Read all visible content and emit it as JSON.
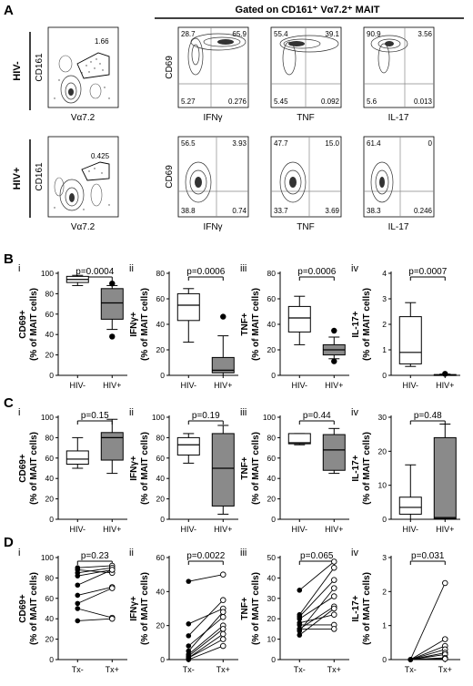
{
  "sections": {
    "A": {
      "label": "A",
      "gating_title": "Gated on CD161⁺ Vα7.2⁺ MAIT"
    },
    "B": {
      "label": "B"
    },
    "C": {
      "label": "C"
    },
    "D": {
      "label": "D"
    }
  },
  "panel_A": {
    "rows": [
      {
        "label": "HIV-",
        "gate": {
          "xlabel": "Vα7.2",
          "ylabel": "CD161",
          "value": "1.66"
        },
        "quadrants": [
          {
            "xlabel": "IFNγ",
            "ylabel": "CD69",
            "q": [
              "28.7",
              "65.9",
              "5.27",
              "0.276"
            ]
          },
          {
            "xlabel": "TNF",
            "ylabel": "",
            "q": [
              "55.4",
              "39.1",
              "5.45",
              "0.092"
            ]
          },
          {
            "xlabel": "IL-17",
            "ylabel": "",
            "q": [
              "90.9",
              "3.56",
              "5.6",
              "0.013"
            ]
          }
        ]
      },
      {
        "label": "HIV+",
        "gate": {
          "xlabel": "Vα7.2",
          "ylabel": "CD161",
          "value": "0.425"
        },
        "quadrants": [
          {
            "xlabel": "IFNγ",
            "ylabel": "CD69",
            "q": [
              "56.5",
              "3.93",
              "38.8",
              "0.74"
            ]
          },
          {
            "xlabel": "TNF",
            "ylabel": "",
            "q": [
              "47.7",
              "15.0",
              "33.7",
              "3.69"
            ]
          },
          {
            "xlabel": "IL-17",
            "ylabel": "",
            "q": [
              "61.4",
              "0",
              "38.3",
              "0.246"
            ]
          }
        ]
      }
    ]
  },
  "chart_data": [
    {
      "type": "boxplot",
      "section": "B",
      "roman": "i",
      "ylabel_main": "CD69+",
      "ylabel_sub": "(% of MAIT cells)",
      "ylim": [
        0,
        100
      ],
      "yticks": [
        0,
        20,
        40,
        60,
        80,
        100
      ],
      "categories": [
        "HIV-",
        "HIV+"
      ],
      "pvalue": "p=0.0004",
      "boxes": [
        {
          "min": 88,
          "q1": 91,
          "median": 94,
          "q3": 97,
          "max": 98,
          "outliers": []
        },
        {
          "min": 45,
          "q1": 55,
          "median": 71,
          "q3": 85,
          "max": 88,
          "outliers": [
            38,
            90
          ]
        }
      ]
    },
    {
      "type": "boxplot",
      "section": "B",
      "roman": "ii",
      "ylabel_main": "IFNγ+",
      "ylabel_sub": "(% of MAIT cells)",
      "ylim": [
        0,
        80
      ],
      "yticks": [
        0,
        20,
        40,
        60,
        80
      ],
      "categories": [
        "HIV-",
        "HIV+"
      ],
      "pvalue": "p=0.0006",
      "boxes": [
        {
          "min": 26,
          "q1": 43,
          "median": 55,
          "q3": 64,
          "max": 68,
          "outliers": []
        },
        {
          "min": 0,
          "q1": 2,
          "median": 4,
          "q3": 14,
          "max": 31,
          "outliers": [
            46
          ]
        }
      ]
    },
    {
      "type": "boxplot",
      "section": "B",
      "roman": "iii",
      "ylabel_main": "TNF+",
      "ylabel_sub": "(% of MAIT cells)",
      "ylim": [
        0,
        80
      ],
      "yticks": [
        0,
        20,
        40,
        60,
        80
      ],
      "categories": [
        "HIV-",
        "HIV+"
      ],
      "pvalue": "p=0.0006",
      "boxes": [
        {
          "min": 24,
          "q1": 34,
          "median": 45,
          "q3": 54,
          "max": 62,
          "outliers": []
        },
        {
          "min": 13,
          "q1": 16,
          "median": 20,
          "q3": 24,
          "max": 30,
          "outliers": [
            11,
            35
          ]
        }
      ]
    },
    {
      "type": "boxplot",
      "section": "B",
      "roman": "iv",
      "ylabel_main": "IL-17+",
      "ylabel_sub": "(% of MAIT cells)",
      "ylim": [
        0,
        4
      ],
      "yticks": [
        0,
        1,
        2,
        3,
        4
      ],
      "categories": [
        "HIV-",
        "HIV+"
      ],
      "pvalue": "p=0.0007",
      "boxes": [
        {
          "min": 0.35,
          "q1": 0.45,
          "median": 0.9,
          "q3": 2.3,
          "max": 2.85,
          "outliers": []
        },
        {
          "min": 0,
          "q1": 0,
          "median": 0.02,
          "q3": 0.03,
          "max": 0.05,
          "outliers": [
            0.06
          ]
        }
      ]
    },
    {
      "type": "boxplot",
      "section": "C",
      "roman": "i",
      "ylabel_main": "CD69+",
      "ylabel_sub": "(% of MAIT cells)",
      "ylim": [
        0,
        100
      ],
      "yticks": [
        0,
        20,
        40,
        60,
        80,
        100
      ],
      "categories": [
        "HIV-",
        "HIV+"
      ],
      "pvalue": "p=0.15",
      "boxes": [
        {
          "min": 50,
          "q1": 54,
          "median": 59,
          "q3": 67,
          "max": 80,
          "outliers": []
        },
        {
          "min": 45,
          "q1": 58,
          "median": 80,
          "q3": 85,
          "max": 98,
          "outliers": []
        }
      ]
    },
    {
      "type": "boxplot",
      "section": "C",
      "roman": "ii",
      "ylabel_main": "IFNγ+",
      "ylabel_sub": "(% of MAIT cells)",
      "ylim": [
        0,
        100
      ],
      "yticks": [
        0,
        20,
        40,
        60,
        80,
        100
      ],
      "categories": [
        "HIV-",
        "HIV+"
      ],
      "pvalue": "p=0.19",
      "boxes": [
        {
          "min": 55,
          "q1": 63,
          "median": 73,
          "q3": 80,
          "max": 84,
          "outliers": []
        },
        {
          "min": 5,
          "q1": 13,
          "median": 50,
          "q3": 84,
          "max": 92,
          "outliers": []
        }
      ]
    },
    {
      "type": "boxplot",
      "section": "C",
      "roman": "iii",
      "ylabel_main": "TNF+",
      "ylabel_sub": "(% of MAIT cells)",
      "ylim": [
        0,
        100
      ],
      "yticks": [
        0,
        20,
        40,
        60,
        80,
        100
      ],
      "categories": [
        "HIV-",
        "HIV+"
      ],
      "pvalue": "p=0.44",
      "boxes": [
        {
          "min": 73,
          "q1": 74,
          "median": 75,
          "q3": 84,
          "max": 84,
          "outliers": []
        },
        {
          "min": 45,
          "q1": 48,
          "median": 68,
          "q3": 83,
          "max": 89,
          "outliers": []
        }
      ]
    },
    {
      "type": "boxplot",
      "section": "C",
      "roman": "iv",
      "ylabel_main": "IL-17+",
      "ylabel_sub": "(% of MAIT cells)",
      "ylim": [
        0,
        30
      ],
      "yticks": [
        0,
        10,
        20,
        30
      ],
      "categories": [
        "HIV-",
        "HIV+"
      ],
      "pvalue": "p=0.48",
      "boxes": [
        {
          "min": 0,
          "q1": 1.5,
          "median": 3.5,
          "q3": 6.5,
          "max": 16,
          "outliers": []
        },
        {
          "min": 0,
          "q1": 0.2,
          "median": 0.5,
          "q3": 24,
          "max": 28,
          "outliers": []
        }
      ]
    },
    {
      "type": "paired",
      "section": "D",
      "roman": "i",
      "ylabel_main": "CD69+",
      "ylabel_sub": "(% of MAIT cells)",
      "ylim": [
        0,
        100
      ],
      "yticks": [
        0,
        20,
        40,
        60,
        80,
        100
      ],
      "categories": [
        "Tx-",
        "Tx+"
      ],
      "pvalue": "p=0.23",
      "pairs": [
        [
          90,
          92
        ],
        [
          88,
          85
        ],
        [
          85,
          90
        ],
        [
          82,
          88
        ],
        [
          73,
          88
        ],
        [
          63,
          71
        ],
        [
          55,
          70
        ],
        [
          50,
          41
        ],
        [
          38,
          40
        ]
      ]
    },
    {
      "type": "paired",
      "section": "D",
      "roman": "ii",
      "ylabel_main": "IFNγ+",
      "ylabel_sub": "(% of MAIT cells)",
      "ylim": [
        0,
        60
      ],
      "yticks": [
        0,
        20,
        40,
        60
      ],
      "categories": [
        "Tx-",
        "Tx+"
      ],
      "pvalue": "p=0.0022",
      "pairs": [
        [
          46,
          50
        ],
        [
          21,
          30
        ],
        [
          14,
          35
        ],
        [
          8,
          25
        ],
        [
          5,
          28
        ],
        [
          3,
          20
        ],
        [
          2,
          18
        ],
        [
          1,
          15
        ],
        [
          1,
          12
        ],
        [
          0,
          8
        ]
      ]
    },
    {
      "type": "paired",
      "section": "D",
      "roman": "iii",
      "ylabel_main": "TNF+",
      "ylabel_sub": "(% of MAIT cells)",
      "ylim": [
        0,
        50
      ],
      "yticks": [
        0,
        10,
        20,
        30,
        40,
        50
      ],
      "categories": [
        "Tx-",
        "Tx+"
      ],
      "pvalue": "p=0.065",
      "pairs": [
        [
          34,
          48
        ],
        [
          22,
          45
        ],
        [
          21,
          39
        ],
        [
          20,
          31
        ],
        [
          18,
          22
        ],
        [
          17,
          17
        ],
        [
          15,
          15
        ],
        [
          15,
          26
        ],
        [
          14,
          35
        ],
        [
          12,
          25
        ]
      ]
    },
    {
      "type": "paired",
      "section": "D",
      "roman": "iv",
      "ylabel_main": "IL-17+",
      "ylabel_sub": "(% of MAIT cells)",
      "ylim": [
        0,
        3
      ],
      "yticks": [
        0,
        1,
        2,
        3
      ],
      "categories": [
        "Tx-",
        "Tx+"
      ],
      "pvalue": "p=0.031",
      "pairs": [
        [
          0,
          2.25
        ],
        [
          0,
          0.6
        ],
        [
          0,
          0.4
        ],
        [
          0,
          0.3
        ],
        [
          0,
          0.2
        ],
        [
          0,
          0.15
        ],
        [
          0,
          0.05
        ],
        [
          0,
          0.02
        ]
      ]
    }
  ]
}
